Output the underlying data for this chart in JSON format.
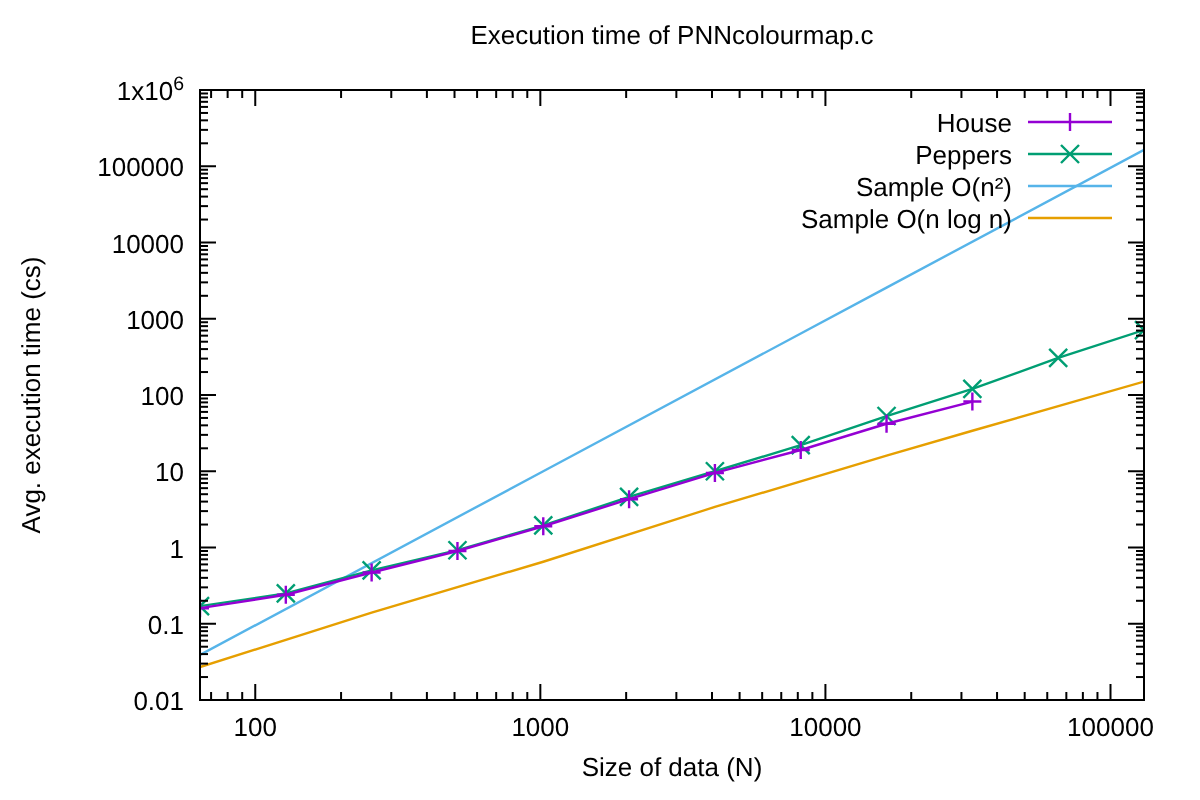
{
  "chart_data": {
    "type": "line",
    "title": "Execution time of PNNcolourmap.c",
    "xlabel": "Size of data (N)",
    "ylabel": "Avg. execution time (cs)",
    "log": "xy",
    "xlim": [
      64,
      131072
    ],
    "ylim": [
      0.01,
      1000000
    ],
    "xticks": [
      100,
      1000,
      10000,
      100000
    ],
    "yticks": [
      0.01,
      0.1,
      1,
      10,
      100,
      1000,
      10000,
      100000,
      {
        "value": 1000000,
        "label": "1x10$^{6}$"
      }
    ],
    "legend": "top right",
    "grid": false,
    "series": [
      {
        "name": "House",
        "color": "#9400d3",
        "marker": "plus",
        "x": [
          64,
          128,
          256,
          512,
          1024,
          2048,
          4096,
          8192,
          16384,
          32768
        ],
        "values": [
          0.16,
          0.24,
          0.47,
          0.9,
          1.9,
          4.3,
          9.5,
          19,
          42,
          82
        ]
      },
      {
        "name": "Peppers",
        "color": "#009e73",
        "marker": "cross",
        "x": [
          64,
          128,
          256,
          512,
          1024,
          2048,
          4096,
          8192,
          16384,
          32768,
          65536,
          131072
        ],
        "values": [
          0.17,
          0.25,
          0.5,
          0.92,
          1.95,
          4.6,
          10,
          22,
          53,
          120,
          306,
          710
        ]
      },
      {
        "name": "Sample O(n²)",
        "color": "#56b4e9",
        "marker": "none",
        "x": [
          64,
          1024,
          16384,
          131072
        ],
        "values": [
          0.039,
          10,
          2560,
          164000
        ]
      },
      {
        "name": "Sample O(n log n)",
        "color": "#e69f00",
        "marker": "none",
        "x": [
          64,
          256,
          1024,
          4096,
          16384,
          32768,
          131072
        ],
        "values": [
          0.027,
          0.14,
          0.65,
          3.4,
          16,
          34,
          150
        ]
      }
    ]
  }
}
